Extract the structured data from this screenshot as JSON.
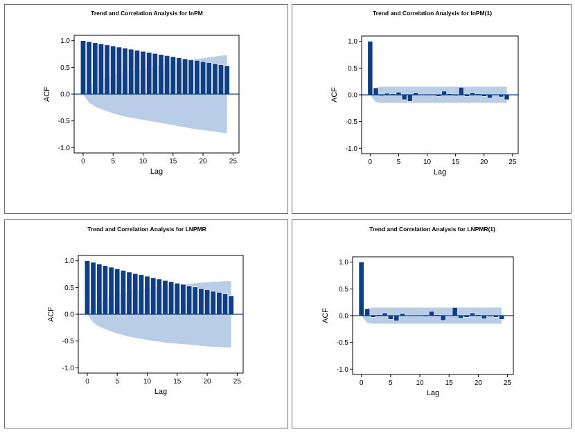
{
  "chart_data": [
    {
      "type": "bar",
      "title": "Trend and Correlation Analysis for lnPM",
      "xlabel": "Lag",
      "ylabel": "ACF",
      "xlim": [
        -1.5,
        26
      ],
      "ylim": [
        -1.1,
        1.1
      ],
      "xticks": [
        0,
        5,
        10,
        15,
        20,
        25
      ],
      "yticks": [
        1.0,
        0.5,
        0.0,
        -0.5,
        -1.0
      ],
      "ytick_labels": [
        "1.0",
        "0.5",
        "0.0",
        "-0.5",
        "-1.0"
      ],
      "lags": [
        0,
        1,
        2,
        3,
        4,
        5,
        6,
        7,
        8,
        9,
        10,
        11,
        12,
        13,
        14,
        15,
        16,
        17,
        18,
        19,
        20,
        21,
        22,
        23,
        24
      ],
      "values": [
        1.0,
        0.98,
        0.96,
        0.94,
        0.92,
        0.9,
        0.88,
        0.86,
        0.84,
        0.82,
        0.8,
        0.78,
        0.76,
        0.74,
        0.72,
        0.7,
        0.68,
        0.66,
        0.64,
        0.63,
        0.61,
        0.59,
        0.57,
        0.55,
        0.53
      ],
      "confidence_band": [
        0.0,
        0.16,
        0.23,
        0.28,
        0.32,
        0.36,
        0.39,
        0.42,
        0.44,
        0.46,
        0.48,
        0.5,
        0.52,
        0.54,
        0.56,
        0.58,
        0.6,
        0.62,
        0.64,
        0.66,
        0.67,
        0.69,
        0.7,
        0.72,
        0.73
      ],
      "colors": {
        "bar": "#0f3e83",
        "band": "#b9cde6",
        "zero_line": "#0f3e83"
      }
    },
    {
      "type": "bar",
      "title": "Trend and Correlation Analysis for lnPM(1)",
      "xlabel": "Lag",
      "ylabel": "ACF",
      "xlim": [
        -1.5,
        26
      ],
      "ylim": [
        -1.1,
        1.1
      ],
      "xticks": [
        0,
        5,
        10,
        15,
        20,
        25
      ],
      "yticks": [
        1.0,
        0.5,
        0.0,
        -0.5,
        -1.0
      ],
      "ytick_labels": [
        "1.0",
        "0.5",
        "0.0",
        "-0.5",
        "-1.0"
      ],
      "lags": [
        0,
        1,
        2,
        3,
        4,
        5,
        6,
        7,
        8,
        9,
        10,
        11,
        12,
        13,
        14,
        15,
        16,
        17,
        18,
        19,
        20,
        21,
        22,
        23,
        24
      ],
      "values": [
        1.0,
        0.13,
        -0.02,
        0.03,
        0.02,
        0.05,
        -0.09,
        -0.12,
        0.04,
        -0.01,
        0.0,
        0.0,
        -0.03,
        0.07,
        0.02,
        -0.02,
        0.14,
        -0.03,
        0.04,
        0.02,
        -0.03,
        -0.06,
        0.0,
        -0.04,
        -0.09
      ],
      "confidence_band": [
        0.0,
        0.14,
        0.15,
        0.15,
        0.15,
        0.15,
        0.15,
        0.15,
        0.15,
        0.15,
        0.15,
        0.15,
        0.15,
        0.15,
        0.15,
        0.15,
        0.15,
        0.15,
        0.15,
        0.15,
        0.15,
        0.15,
        0.15,
        0.15,
        0.15
      ],
      "colors": {
        "bar": "#0f3e83",
        "band": "#b9cde6",
        "zero_line": "#0f3e83"
      }
    },
    {
      "type": "bar",
      "title": "Trend and Correlation Analysis for LNPMR",
      "xlabel": "Lag",
      "ylabel": "ACF",
      "xlim": [
        -1.5,
        26
      ],
      "ylim": [
        -1.1,
        1.1
      ],
      "xticks": [
        0,
        5,
        10,
        15,
        20,
        25
      ],
      "yticks": [
        1.0,
        0.5,
        0.0,
        -0.5,
        -1.0
      ],
      "ytick_labels": [
        "1.0",
        "0.5",
        "0.0",
        "-0.5",
        "-1.0"
      ],
      "lags": [
        0,
        1,
        2,
        3,
        4,
        5,
        6,
        7,
        8,
        9,
        10,
        11,
        12,
        13,
        14,
        15,
        16,
        17,
        18,
        19,
        20,
        21,
        22,
        23,
        24
      ],
      "values": [
        1.0,
        0.97,
        0.94,
        0.91,
        0.88,
        0.85,
        0.82,
        0.79,
        0.76,
        0.74,
        0.71,
        0.68,
        0.66,
        0.63,
        0.61,
        0.58,
        0.56,
        0.53,
        0.51,
        0.48,
        0.46,
        0.43,
        0.41,
        0.38,
        0.34
      ],
      "confidence_band": [
        0.0,
        0.16,
        0.23,
        0.28,
        0.32,
        0.36,
        0.39,
        0.42,
        0.44,
        0.46,
        0.48,
        0.5,
        0.51,
        0.53,
        0.54,
        0.55,
        0.56,
        0.57,
        0.58,
        0.59,
        0.6,
        0.61,
        0.61,
        0.62,
        0.62
      ],
      "colors": {
        "bar": "#0f3e83",
        "band": "#b9cde6",
        "zero_line": "#0f3e83"
      }
    },
    {
      "type": "bar",
      "title": "Trend and Correlation Analysis for LNPMR(1)",
      "xlabel": "Lag",
      "ylabel": "ACF",
      "xlim": [
        -1.5,
        26
      ],
      "ylim": [
        -1.1,
        1.1
      ],
      "xticks": [
        0,
        5,
        10,
        15,
        20,
        25
      ],
      "yticks": [
        1.0,
        0.5,
        0.0,
        -0.5,
        -1.0
      ],
      "ytick_labels": [
        "1.0",
        "0.5",
        "0.0",
        "-0.5",
        "-1.0"
      ],
      "lags": [
        0,
        1,
        2,
        3,
        4,
        5,
        6,
        7,
        8,
        9,
        10,
        11,
        12,
        13,
        14,
        15,
        16,
        17,
        18,
        19,
        20,
        21,
        22,
        23,
        24
      ],
      "values": [
        1.0,
        0.13,
        -0.03,
        0.02,
        0.05,
        -0.07,
        -0.1,
        0.04,
        -0.01,
        0.0,
        0.0,
        -0.02,
        0.08,
        0.02,
        -0.09,
        0.01,
        0.15,
        -0.05,
        -0.03,
        0.05,
        0.02,
        -0.06,
        -0.02,
        -0.03,
        -0.07
      ],
      "confidence_band": [
        0.0,
        0.14,
        0.15,
        0.15,
        0.15,
        0.15,
        0.15,
        0.15,
        0.15,
        0.15,
        0.15,
        0.15,
        0.15,
        0.15,
        0.15,
        0.15,
        0.15,
        0.15,
        0.15,
        0.15,
        0.15,
        0.15,
        0.15,
        0.15,
        0.15
      ],
      "colors": {
        "bar": "#0f3e83",
        "band": "#b9cde6",
        "zero_line": "#0f3e83"
      }
    }
  ]
}
